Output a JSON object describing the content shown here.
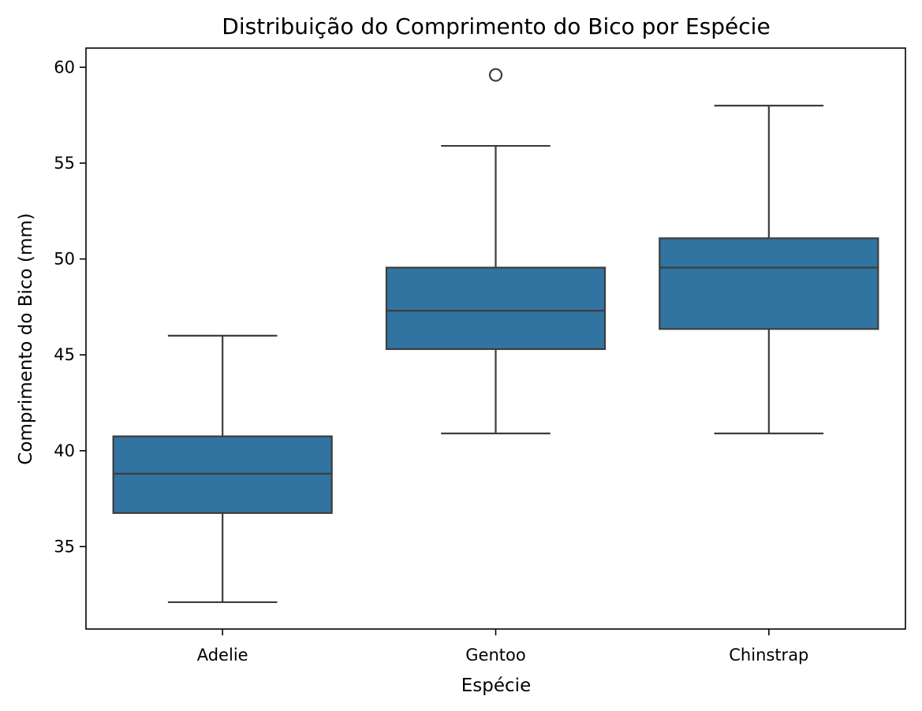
{
  "chart_data": {
    "type": "box",
    "title": "Distribuição do Comprimento do Bico por Espécie",
    "xlabel": "Espécie",
    "ylabel": "Comprimento do Bico (mm)",
    "ylim": [
      30.7,
      61.0
    ],
    "yticks": [
      35,
      40,
      45,
      50,
      55,
      60
    ],
    "grid": false,
    "box_color": "#3274a1",
    "line_color": "#3d3d3d",
    "categories": [
      "Adelie",
      "Gentoo",
      "Chinstrap"
    ],
    "boxes": [
      {
        "category": "Adelie",
        "whisker_low": 32.1,
        "q1": 36.75,
        "median": 38.8,
        "q3": 40.75,
        "whisker_high": 46.0,
        "outliers": []
      },
      {
        "category": "Gentoo",
        "whisker_low": 40.9,
        "q1": 45.3,
        "median": 47.3,
        "q3": 49.55,
        "whisker_high": 55.9,
        "outliers": [
          59.6
        ]
      },
      {
        "category": "Chinstrap",
        "whisker_low": 40.9,
        "q1": 46.35,
        "median": 49.55,
        "q3": 51.08,
        "whisker_high": 58.0,
        "outliers": []
      }
    ]
  }
}
